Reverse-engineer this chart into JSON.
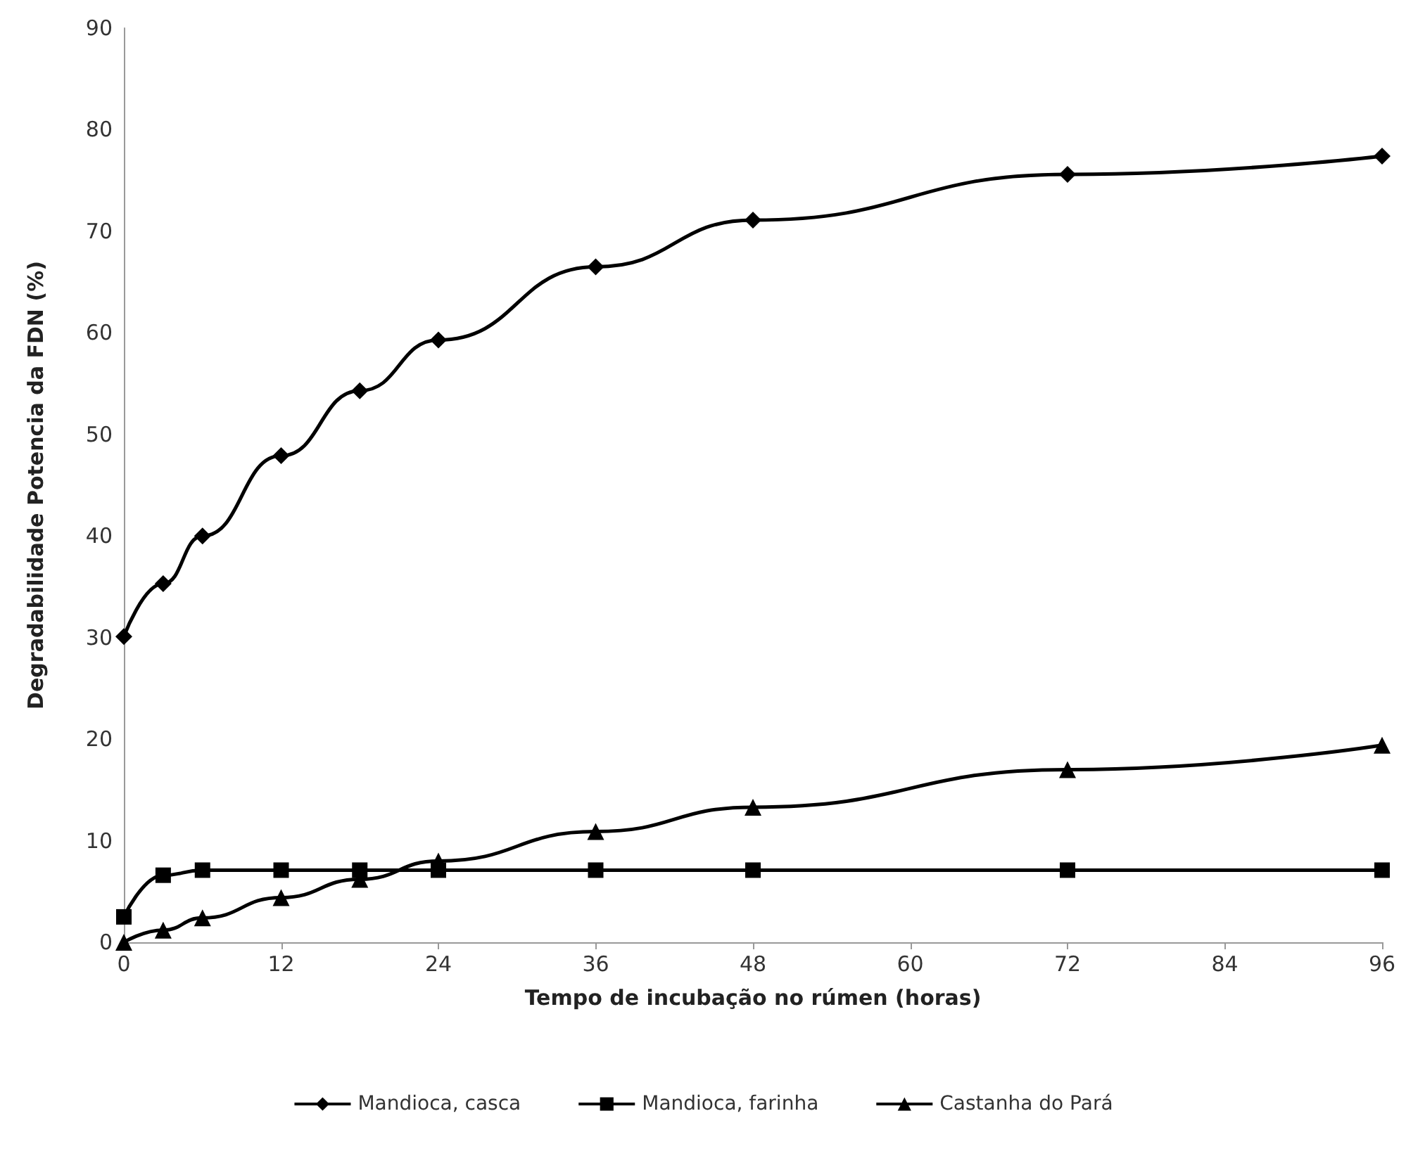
{
  "chart_data": {
    "type": "line",
    "xlabel": "Tempo de incubação no rúmen (horas)",
    "ylabel": "Degradabilidade Potencia da FDN (%)",
    "xlim": [
      0,
      96
    ],
    "xticks": [
      0,
      12,
      24,
      36,
      48,
      60,
      72,
      84,
      96
    ],
    "ylim": [
      0,
      90
    ],
    "yticks": [
      0,
      10,
      20,
      30,
      40,
      50,
      60,
      70,
      80,
      90
    ],
    "grid": false,
    "legend": "bottom",
    "line_style": "solid",
    "series": [
      {
        "name": "Mandioca, casca",
        "color": "#000000",
        "marker": "diamond",
        "x": [
          0,
          3,
          6,
          12,
          18,
          24,
          36,
          48,
          72,
          96
        ],
        "values": [
          30.1,
          35.3,
          40.0,
          47.9,
          54.3,
          59.3,
          66.5,
          71.1,
          75.6,
          77.4
        ]
      },
      {
        "name": "Mandioca, farinha",
        "color": "#000000",
        "marker": "square",
        "x": [
          0,
          3,
          6,
          12,
          18,
          24,
          36,
          48,
          72,
          96
        ],
        "values": [
          2.5,
          6.6,
          7.1,
          7.1,
          7.1,
          7.1,
          7.1,
          7.1,
          7.1,
          7.1
        ]
      },
      {
        "name": "Castanha do Pará",
        "color": "#000000",
        "marker": "triangle",
        "x": [
          0,
          3,
          6,
          12,
          18,
          24,
          36,
          48,
          72,
          96
        ],
        "values": [
          0,
          1.2,
          2.4,
          4.4,
          6.2,
          8.0,
          10.9,
          13.3,
          17.0,
          19.4
        ]
      }
    ]
  }
}
